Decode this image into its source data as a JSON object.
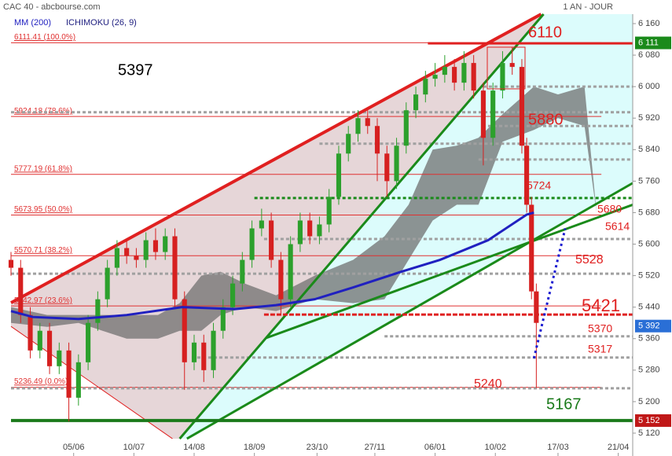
{
  "chart_data": {
    "type": "candlestick",
    "title": "CAC 40 - abcbourse.com",
    "period": "1 AN - JOUR",
    "legend": [
      {
        "name": "MM (200)",
        "color": "#2020c0"
      },
      {
        "name": "ICHIMOKU (26, 9)",
        "color": "#202080"
      }
    ],
    "xlim": [
      0,
      258
    ],
    "ylim": [
      5066,
      6184
    ],
    "xticks": [
      {
        "value": 26,
        "label": "05/06"
      },
      {
        "value": 51,
        "label": "10/07"
      },
      {
        "value": 76,
        "label": "14/08"
      },
      {
        "value": 101,
        "label": "18/09"
      },
      {
        "value": 127,
        "label": "23/10"
      },
      {
        "value": 151,
        "label": "27/11"
      },
      {
        "value": 176,
        "label": "06/01"
      },
      {
        "value": 201,
        "label": "10/02"
      },
      {
        "value": 227,
        "label": "17/03"
      },
      {
        "value": 252,
        "label": "21/04"
      }
    ],
    "yticks": [
      {
        "value": 6160,
        "label": "6 160"
      },
      {
        "value": 6080,
        "label": "6 080"
      },
      {
        "value": 6000,
        "label": "6 000"
      },
      {
        "value": 5920,
        "label": "5 920"
      },
      {
        "value": 5840,
        "label": "5 840"
      },
      {
        "value": 5760,
        "label": "5 760"
      },
      {
        "value": 5680,
        "label": "5 680"
      },
      {
        "value": 5600,
        "label": "5 600"
      },
      {
        "value": 5520,
        "label": "5 520"
      },
      {
        "value": 5440,
        "label": "5 440"
      },
      {
        "value": 5360,
        "label": "5 360"
      },
      {
        "value": 5280,
        "label": "5 280"
      },
      {
        "value": 5200,
        "label": "5 200"
      },
      {
        "value": 5120,
        "label": "5 120"
      }
    ],
    "badges": [
      {
        "value": 6111,
        "label": "6 111",
        "color": "#1a8a1a"
      },
      {
        "value": 5392,
        "label": "5 392",
        "color": "#2a6fd6"
      },
      {
        "value": 5152,
        "label": "5 152",
        "color": "#c01818"
      }
    ],
    "up_color": "#2ca02c",
    "down_color": "#d62020",
    "candles": [
      [
        0,
        5560,
        5580,
        5520,
        5540
      ],
      [
        4,
        5540,
        5560,
        5400,
        5420
      ],
      [
        8,
        5420,
        5440,
        5310,
        5330
      ],
      [
        12,
        5330,
        5400,
        5310,
        5380
      ],
      [
        16,
        5380,
        5400,
        5270,
        5290
      ],
      [
        20,
        5290,
        5350,
        5270,
        5330
      ],
      [
        24,
        5330,
        5350,
        5150,
        5210
      ],
      [
        28,
        5210,
        5320,
        5190,
        5300
      ],
      [
        32,
        5300,
        5420,
        5280,
        5400
      ],
      [
        36,
        5400,
        5480,
        5380,
        5460
      ],
      [
        40,
        5460,
        5560,
        5440,
        5540
      ],
      [
        44,
        5540,
        5610,
        5520,
        5590
      ],
      [
        48,
        5590,
        5610,
        5550,
        5570
      ],
      [
        52,
        5570,
        5590,
        5540,
        5560
      ],
      [
        56,
        5560,
        5630,
        5540,
        5610
      ],
      [
        60,
        5610,
        5640,
        5560,
        5580
      ],
      [
        64,
        5580,
        5640,
        5560,
        5620
      ],
      [
        68,
        5620,
        5640,
        5440,
        5460
      ],
      [
        72,
        5460,
        5480,
        5230,
        5300
      ],
      [
        76,
        5300,
        5370,
        5280,
        5350
      ],
      [
        80,
        5350,
        5370,
        5250,
        5280
      ],
      [
        84,
        5280,
        5400,
        5260,
        5380
      ],
      [
        88,
        5380,
        5460,
        5360,
        5440
      ],
      [
        92,
        5440,
        5520,
        5420,
        5500
      ],
      [
        96,
        5500,
        5580,
        5480,
        5560
      ],
      [
        100,
        5560,
        5660,
        5540,
        5640
      ],
      [
        104,
        5640,
        5690,
        5620,
        5660
      ],
      [
        108,
        5660,
        5680,
        5540,
        5560
      ],
      [
        112,
        5560,
        5580,
        5420,
        5460
      ],
      [
        116,
        5460,
        5620,
        5440,
        5600
      ],
      [
        120,
        5600,
        5680,
        5580,
        5660
      ],
      [
        124,
        5660,
        5680,
        5600,
        5620
      ],
      [
        128,
        5620,
        5670,
        5600,
        5650
      ],
      [
        132,
        5650,
        5740,
        5630,
        5720
      ],
      [
        136,
        5720,
        5850,
        5700,
        5830
      ],
      [
        140,
        5830,
        5900,
        5810,
        5880
      ],
      [
        144,
        5880,
        5940,
        5860,
        5920
      ],
      [
        148,
        5920,
        5940,
        5880,
        5900
      ],
      [
        152,
        5900,
        5920,
        5760,
        5830
      ],
      [
        156,
        5830,
        5850,
        5720,
        5760
      ],
      [
        160,
        5760,
        5870,
        5740,
        5850
      ],
      [
        164,
        5850,
        5960,
        5830,
        5940
      ],
      [
        168,
        5940,
        6000,
        5920,
        5980
      ],
      [
        172,
        5980,
        6040,
        5960,
        6020
      ],
      [
        176,
        6020,
        6060,
        6000,
        6030
      ],
      [
        180,
        6030,
        6080,
        6010,
        6050
      ],
      [
        184,
        6050,
        6070,
        5990,
        6010
      ],
      [
        188,
        6010,
        6090,
        5990,
        6060
      ],
      [
        192,
        6060,
        6080,
        5970,
        5990
      ],
      [
        196,
        5990,
        6010,
        5800,
        5870
      ],
      [
        200,
        5870,
        6010,
        5850,
        5990
      ],
      [
        204,
        5990,
        6090,
        5970,
        6060
      ],
      [
        208,
        6060,
        6100,
        6030,
        6050
      ],
      [
        212,
        6050,
        6070,
        5830,
        5850
      ],
      [
        214,
        5850,
        5870,
        5680,
        5700
      ],
      [
        216,
        5700,
        5720,
        5460,
        5480
      ],
      [
        218,
        5480,
        5500,
        5235,
        5400
      ]
    ],
    "mm200": {
      "x": [
        0,
        9,
        28,
        48,
        71,
        93,
        110,
        126,
        142,
        162,
        178,
        198,
        214,
        217
      ],
      "values": [
        5430,
        5415,
        5410,
        5420,
        5440,
        5435,
        5445,
        5460,
        5490,
        5530,
        5560,
        5610,
        5675,
        5680
      ],
      "color": "#2020c0"
    },
    "cloud": {
      "x": [
        0,
        15,
        28,
        48,
        61,
        70,
        79,
        87,
        97,
        110,
        126,
        142,
        155,
        165,
        175,
        185,
        194,
        204,
        217,
        227,
        238,
        243
      ],
      "upper": [
        5440,
        5420,
        5420,
        5420,
        5420,
        5450,
        5520,
        5530,
        5500,
        5470,
        5520,
        5560,
        5620,
        5700,
        5840,
        5850,
        5870,
        5930,
        6000,
        5980,
        6000,
        5680
      ],
      "lower": [
        5400,
        5390,
        5400,
        5360,
        5360,
        5380,
        5380,
        5420,
        5440,
        5430,
        5460,
        5450,
        5460,
        5560,
        5660,
        5700,
        5700,
        5860,
        5890,
        5920,
        5900,
        5680
      ],
      "color": "#707070"
    },
    "fibonacci": [
      {
        "value": 6111.41,
        "label": "6111.41  (100.0%)"
      },
      {
        "value": 5924.18,
        "label": "5924.18  (78.6%)"
      },
      {
        "value": 5777.19,
        "label": "5777.19  (61.8%)"
      },
      {
        "value": 5673.95,
        "label": "5673.95  (50.0%)"
      },
      {
        "value": 5570.71,
        "label": "5570.71  (38.2%)"
      },
      {
        "value": 5442.97,
        "label": "5442.97  (23.6%)"
      },
      {
        "value": 5236.49,
        "label": "5236.49  (0.0%)"
      }
    ],
    "fib_color": "#e03030",
    "fib_end": 245,
    "dashed_levels": [
      {
        "value": 6000,
        "from": 196
      },
      {
        "value": 5935,
        "from": 0
      },
      {
        "value": 5900,
        "from": 198
      },
      {
        "value": 5855,
        "from": 128
      },
      {
        "value": 5815,
        "from": 194
      },
      {
        "value": 5613,
        "from": 105
      },
      {
        "value": 5525,
        "from": 0
      },
      {
        "value": 5366,
        "from": 155
      },
      {
        "value": 5312,
        "from": 75
      },
      {
        "value": 5234,
        "from": 0
      }
    ],
    "dashed_color": "#a0a0a0",
    "strong_levels": [
      {
        "value": 5717,
        "from": 101,
        "color": "#1a8a1a",
        "dash": "4 3",
        "width": 3
      },
      {
        "value": 6110,
        "from": 173,
        "color": "#e02020",
        "dash": "",
        "width": 3
      },
      {
        "value": 5421,
        "from": 105,
        "color": "#e02020",
        "dash": "6 2",
        "width": 3
      },
      {
        "value": 5152,
        "from": 0,
        "color": "#1a7a1a",
        "dash": "",
        "width": 4
      }
    ],
    "trendlines": [
      {
        "x": [
          0,
          220
        ],
        "y": [
          5451,
          6184
        ],
        "color": "#e02020",
        "width": 4
      },
      {
        "x": [
          0,
          67
        ],
        "y": [
          5391,
          5106
        ],
        "color": "#e02020",
        "width": 1
      },
      {
        "x": [
          70,
          221
        ],
        "y": [
          5106,
          6184
        ],
        "color": "#1a8a1a",
        "width": 3
      },
      {
        "x": [
          73,
          258
        ],
        "y": [
          5106,
          5755
        ],
        "color": "#1a8a1a",
        "width": 3
      },
      {
        "x": [
          106,
          258
        ],
        "y": [
          5362,
          5700
        ],
        "color": "#1a8a1a",
        "width": 3
      }
    ],
    "projection": {
      "x": [
        217,
        230
      ],
      "y": [
        5310,
        5640
      ],
      "color": "#1a1ad0"
    },
    "annotations": [
      {
        "value": 6110,
        "color": "#e02020",
        "size": 20
      },
      {
        "value": 5397,
        "color": "#000000",
        "size": 20
      },
      {
        "value": 5880,
        "color": "#e02020",
        "size": 20
      },
      {
        "value": 5724,
        "color": "#e02020",
        "size": 14
      },
      {
        "value": 5680,
        "color": "#e02020",
        "size": 14
      },
      {
        "value": 5614,
        "color": "#e02020",
        "size": 14
      },
      {
        "value": 5528,
        "color": "#e02020",
        "size": 16
      },
      {
        "value": 5421,
        "color": "#e02020",
        "size": 22
      },
      {
        "value": 5370,
        "color": "#e02020",
        "size": 14
      },
      {
        "value": 5317,
        "color": "#e02020",
        "size": 14
      },
      {
        "value": 5240,
        "color": "#e02020",
        "size": 16
      },
      {
        "value": 5167,
        "color": "#1a7a1a",
        "size": 20
      }
    ]
  }
}
